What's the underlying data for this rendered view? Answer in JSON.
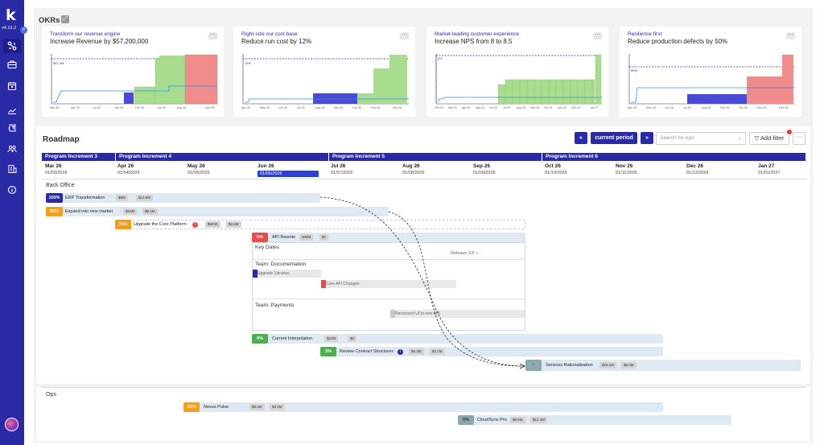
{
  "app": {
    "logo_letter": "k",
    "version": "v4.13.2"
  },
  "sidebar": {
    "icons": [
      "graph-icon",
      "briefcase-icon",
      "calendar-icon",
      "chart-icon",
      "puzzle-icon",
      "team-icon",
      "building-icon",
      "info-icon"
    ],
    "collapse_glyph": "»"
  },
  "okr": {
    "title": "OKRs",
    "expand_glyph": "⤢",
    "cards": [
      {
        "tag": "Transform our revenue engine",
        "title": "Increase Revenue by $57,200,000",
        "target_label": "$57.2M",
        "axis": [
          "Mar 26",
          "Apr 26",
          "Jul 26",
          "Jan 26",
          "Feb 26",
          "Jun 26",
          "Aug 26",
          "Nov 26"
        ],
        "bars": [
          0,
          0,
          0,
          0,
          0,
          0,
          0,
          0,
          0,
          0,
          0,
          0,
          0,
          0,
          0,
          0,
          0,
          0,
          0,
          0,
          0,
          0,
          0,
          25,
          0,
          0,
          0,
          35,
          35,
          35,
          75,
          75,
          75,
          75,
          75,
          75,
          100,
          100,
          100,
          100,
          100,
          100
        ],
        "bar_colors": [
          "b",
          "b",
          "b",
          "b",
          "b",
          "b",
          "b",
          "b",
          "b",
          "b",
          "b",
          "b",
          "b",
          "b",
          "b",
          "b",
          "b",
          "b",
          "b",
          "b",
          "b",
          "b",
          "b",
          "b",
          "b",
          "b",
          "b",
          "g",
          "g",
          "g",
          "g",
          "g",
          "g",
          "g",
          "g",
          "g",
          "r",
          "r",
          "r",
          "r",
          "r",
          "r"
        ]
      },
      {
        "tag": "Right-size our cost base",
        "title": "Reduce run cost by 12%",
        "target_label": "12%",
        "axis": [
          "Apr 26",
          "May 26",
          "Jun 26",
          "Jul 26",
          "Aug 26",
          "Sep 26",
          "Oct 26",
          "Nov 26",
          "Dec 26"
        ],
        "bars": [
          0,
          0,
          0,
          0,
          0,
          0,
          0,
          0,
          0,
          0,
          0,
          0,
          0,
          0,
          0,
          0,
          0,
          0,
          0,
          0,
          0,
          0,
          0,
          0,
          0,
          0,
          0,
          0,
          0,
          20,
          20,
          20,
          20,
          20,
          20,
          20,
          20,
          20,
          20,
          20,
          20,
          20,
          20,
          20,
          20,
          20,
          20,
          20,
          20,
          30,
          30,
          30,
          30,
          30,
          30,
          30,
          30,
          30,
          60,
          60,
          60,
          60,
          60,
          60,
          60,
          60,
          60,
          80,
          80,
          80,
          80,
          80,
          80,
          80,
          80,
          80,
          100,
          100,
          100,
          100,
          100,
          100,
          100,
          100,
          100
        ],
        "bar_colors": "mixed"
      },
      {
        "tag": "Market-leading customer experience",
        "title": "Increase NPS from 8 to 8.5",
        "target_label": "8.5",
        "axis": [
          "Feb 26",
          "Mar 26",
          "Apr 26",
          "May 26",
          "Jun 26",
          "Jul 26",
          "Aug 26",
          "Sep 26",
          "Oct 26",
          "Nov 26",
          "Dec 26",
          "Jan 27"
        ]
      },
      {
        "tag": "Resilience first",
        "title": "Reduce production defects by 50%",
        "target_label": "50%",
        "axis": [
          "Apr 26",
          "May 26",
          "Jun 26",
          "Jul 26",
          "Aug 26",
          "Sep 26",
          "Oct 26",
          "Nov 26",
          "Dec 26"
        ]
      }
    ]
  },
  "roadmap": {
    "title": "Roadmap",
    "prev_label": "«",
    "current_period_label": "current period",
    "next_label": "»",
    "search_placeholder": "Search for epic",
    "add_filter_label": "Add filter",
    "more_label": "···",
    "program_increments": [
      "Program Increment 3",
      "Program Increment 4",
      "Program Increment 5",
      "Program Increment 6"
    ],
    "months": [
      {
        "name": "Mar 26",
        "date": "01/03/2026"
      },
      {
        "name": "Apr 26",
        "date": "01/04/2026"
      },
      {
        "name": "May 26",
        "date": "01/05/2026"
      },
      {
        "name": "Jun 26",
        "date": "01/06/2026"
      },
      {
        "name": "Jul 26",
        "date": "01/07/2026"
      },
      {
        "name": "Aug 26",
        "date": "01/08/2026"
      },
      {
        "name": "Sep 26",
        "date": "01/09/2026"
      },
      {
        "name": "Oct 26",
        "date": "01/10/2026"
      },
      {
        "name": "Nov 26",
        "date": "01/11/2026"
      },
      {
        "name": "Dec 26",
        "date": "01/12/2026"
      },
      {
        "name": "Jan 27",
        "date": "01/01/2027"
      }
    ],
    "groups": {
      "back_office": "Back Office",
      "ops": "Ops"
    },
    "epics": {
      "erp": {
        "pct": "100%",
        "name": "ERP Transformation",
        "chips": [
          "$9M",
          "$12.9M"
        ]
      },
      "expand": {
        "pct": "93%",
        "name": "Expand into new market",
        "chips": [
          "$10M",
          "$9.4M"
        ]
      },
      "upgrade": {
        "pct": "76%",
        "name": "Upgrade the Core Platform",
        "alert": "!",
        "chips": [
          "$940K",
          "$2.5M"
        ]
      },
      "api": {
        "pct": "5%",
        "name": "API Rewrite",
        "chips": [
          "$36M",
          "$0"
        ]
      },
      "current_interp": {
        "pct": "0%",
        "name": "Current Interpolation",
        "chips": [
          "$24M",
          "$0"
        ]
      },
      "review": {
        "pct": "3%",
        "name": "Review Contract Structures",
        "info": "i",
        "chips": [
          "$6.3M",
          "$2.1M"
        ]
      },
      "services": {
        "pct": "-",
        "name": "Services Rationalization",
        "chips": [
          "$16.1M",
          "$6.3M"
        ]
      },
      "nexus": {
        "pct": "29%",
        "name": "Nexus Pulse",
        "chips": [
          "$8.3M",
          "$3.1M"
        ]
      },
      "cloudsync": {
        "pct": "0%",
        "name": "CloudSync Pro",
        "chips": [
          "$8.6M",
          "$12.1M"
        ]
      }
    },
    "api_detail": {
      "key_dates": "Key Dates",
      "release": "Release 3.8",
      "team_docs": "Team: Documentation",
      "upgrade_libraries": "Upgrade Libraries",
      "core_api_changes": "Core API Changes",
      "team_payments": "Team: Payments",
      "reconnect": "Reconnect UI to new API"
    }
  },
  "colors": {
    "primary": "#2b2aa6",
    "green": "#4caf50",
    "orange": "#f59c1a",
    "red": "#e84c4c",
    "teal": "#8aa8ae",
    "bar_bg": "#dfe9f3"
  }
}
